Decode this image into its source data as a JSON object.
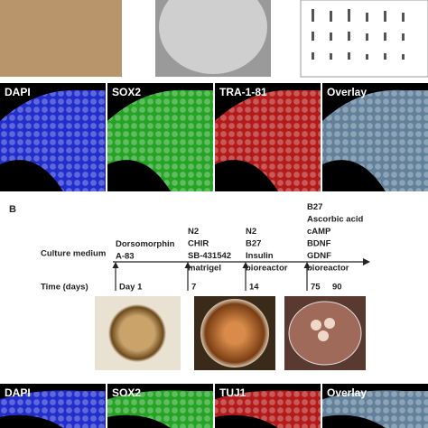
{
  "panel_b_label": "B",
  "row_a": {
    "channels": [
      "DAPI",
      "SOX2",
      "TRA-1-81",
      "Overlay"
    ]
  },
  "timeline": {
    "row_labels": [
      "Culture medium",
      "Time (days)"
    ],
    "stages": [
      {
        "media": [
          "Dorsomorphin",
          "A-83"
        ],
        "day": "Day 1"
      },
      {
        "media": [
          "N2",
          "CHIR",
          "SB-431542",
          "matrigel"
        ],
        "day": "7"
      },
      {
        "media": [
          "N2",
          "B27",
          "Insulin",
          "bioreactor"
        ],
        "day": "14"
      },
      {
        "media": [
          "B27",
          "Ascorbic acid",
          "cAMP",
          "BDNF",
          "GDNF",
          "bioreactor"
        ],
        "day": "75"
      }
    ],
    "end_day": "90"
  },
  "row_b": {
    "channels": [
      "DAPI",
      "SOX2",
      "TUJ1",
      "Overlay"
    ]
  }
}
